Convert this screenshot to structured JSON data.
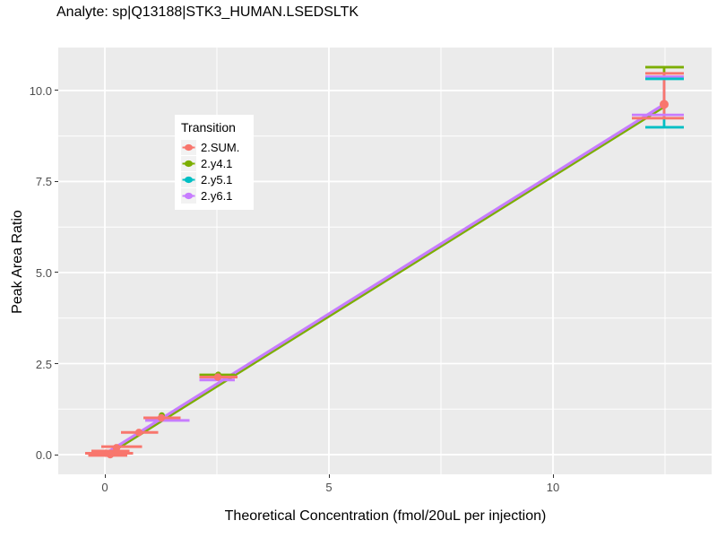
{
  "chart_data": {
    "type": "scatter",
    "title": "Analyte: sp|Q13188|STK3_HUMAN.LSEDSLTK",
    "xlabel": "Theoretical Concentration (fmol/20uL per injection)",
    "ylabel": "Peak Area Ratio",
    "xlim": [
      -1.04,
      13.54
    ],
    "ylim": [
      -0.54,
      11.18
    ],
    "grid": true,
    "x_major_ticks": [
      0,
      5,
      10
    ],
    "x_tick_labels": [
      "0",
      "5",
      "10"
    ],
    "x_minor_ticks": [
      2.5,
      7.5,
      12.5
    ],
    "y_major_ticks": [
      0.0,
      2.5,
      5.0,
      7.5,
      10.0
    ],
    "y_tick_labels": [
      "0.0",
      "2.5",
      "5.0",
      "7.5",
      "10.0"
    ],
    "y_minor_ticks": [
      1.25,
      3.75,
      6.25,
      8.75
    ],
    "colors": {
      "panel_background": "#EBEBEB",
      "gridline": "#FFFFFF",
      "tick_label": "#4D4D4D",
      "sum": "#F8766D",
      "y4": "#7CAE00",
      "y5": "#00BFC4",
      "y6": "#C77CFF"
    },
    "legend": {
      "title": "Transition",
      "position": "inside-top-left",
      "entries": [
        {
          "label": "2.SUM.",
          "color": "#F8766D"
        },
        {
          "label": "2.y4.1",
          "color": "#7CAE00"
        },
        {
          "label": "2.y5.1",
          "color": "#00BFC4"
        },
        {
          "label": "2.y6.1",
          "color": "#C77CFF"
        }
      ]
    },
    "regression_line": {
      "x1": 0.0,
      "y1": 0.02,
      "x2": 12.48,
      "y2": 9.62,
      "layers": [
        {
          "color": "#7CAE00",
          "width": 4.2
        },
        {
          "color": "#C77CFF",
          "width": 3.2
        }
      ]
    },
    "points": {
      "series": "2.SUM.",
      "color": "#F8766D",
      "data": [
        {
          "x": 0.02,
          "y": 0.04
        },
        {
          "x": 0.12,
          "y": 0.0
        },
        {
          "x": 0.26,
          "y": 0.19
        },
        {
          "x": 0.76,
          "y": 0.61
        },
        {
          "x": 1.26,
          "y": 1.01
        },
        {
          "x": 2.52,
          "y": 2.13
        }
      ]
    },
    "secondary_points": [
      {
        "x": 1.27,
        "y": 1.08,
        "color": "#7CAE00"
      },
      {
        "x": 2.53,
        "y": 2.2,
        "color": "#7CAE00"
      }
    ],
    "x_error_bars": [
      {
        "y": 0.04,
        "x_lo": -0.44,
        "x_hi": 0.63,
        "color": "#F8766D"
      },
      {
        "y": -0.02,
        "x_lo": -0.37,
        "x_hi": 0.5,
        "color": "#F8766D"
      },
      {
        "y": 0.1,
        "x_lo": -0.3,
        "x_hi": 0.55,
        "color": "#F8766D"
      },
      {
        "y": 0.22,
        "x_lo": -0.08,
        "x_hi": 0.83,
        "color": "#F8766D"
      },
      {
        "y": 0.61,
        "x_lo": 0.36,
        "x_hi": 1.19,
        "color": "#F8766D"
      },
      {
        "y": 0.94,
        "x_lo": 0.9,
        "x_hi": 1.89,
        "color": "#C77CFF"
      },
      {
        "y": 1.01,
        "x_lo": 0.86,
        "x_hi": 1.69,
        "color": "#F8766D"
      },
      {
        "y": 2.19,
        "x_lo": 2.11,
        "x_hi": 2.9,
        "color": "#7CAE00"
      },
      {
        "y": 2.05,
        "x_lo": 2.11,
        "x_hi": 2.9,
        "color": "#C77CFF"
      },
      {
        "y": 2.13,
        "x_lo": 2.11,
        "x_hi": 2.96,
        "color": "#F8766D"
      }
    ],
    "top_cluster": {
      "x": 12.48,
      "point": {
        "y": 9.62,
        "color": "#F8766D"
      },
      "stems": [
        {
          "color": "#7CAE00",
          "y_lo": 9.31,
          "y_hi": 10.64
        },
        {
          "color": "#00BFC4",
          "y_lo": 8.99,
          "y_hi": 10.32
        },
        {
          "color": "#C77CFF",
          "y_lo": 9.33,
          "y_hi": 10.38
        },
        {
          "color": "#F8766D",
          "y_lo": 9.24,
          "y_hi": 10.47
        }
      ],
      "caps": [
        {
          "color": "#7CAE00",
          "y": 10.64,
          "x_lo": 12.06,
          "x_hi": 12.92
        },
        {
          "color": "#F8766D",
          "y": 10.47,
          "x_lo": 12.06,
          "x_hi": 12.92
        },
        {
          "color": "#C77CFF",
          "y": 10.38,
          "x_lo": 12.06,
          "x_hi": 12.92
        },
        {
          "color": "#00BFC4",
          "y": 10.32,
          "x_lo": 12.06,
          "x_hi": 12.92
        },
        {
          "color": "#C77CFF",
          "y": 9.33,
          "x_lo": 11.76,
          "x_hi": 12.92
        },
        {
          "color": "#F8766D",
          "y": 9.24,
          "x_lo": 11.76,
          "x_hi": 12.92
        },
        {
          "color": "#00BFC4",
          "y": 8.99,
          "x_lo": 12.06,
          "x_hi": 12.92
        }
      ]
    }
  }
}
